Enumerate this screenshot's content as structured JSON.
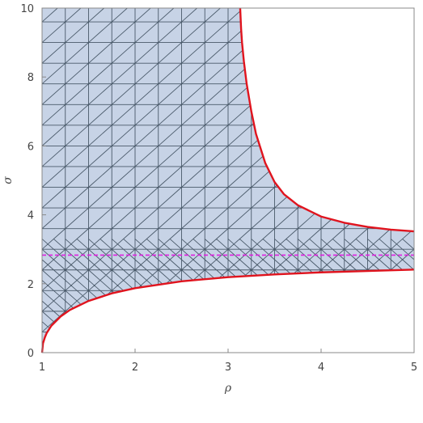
{
  "chart_data": {
    "type": "area",
    "xlabel": "ρ",
    "ylabel": "σ",
    "xlim": [
      1,
      5
    ],
    "ylim": [
      0,
      10
    ],
    "x_ticks": [
      "1",
      "2",
      "3",
      "4",
      "5"
    ],
    "y_ticks": [
      "0",
      "2",
      "4",
      "6",
      "8",
      "10"
    ],
    "grid": false,
    "series": [
      {
        "kind": "lower-boundary",
        "x": [
          1.0,
          1.01,
          1.03,
          1.05,
          1.1,
          1.2,
          1.3,
          1.5,
          1.75,
          2.0,
          2.5,
          3.0,
          3.5,
          4.0,
          4.5,
          5.0
        ],
        "y": [
          0.0,
          0.27,
          0.44,
          0.57,
          0.78,
          1.05,
          1.24,
          1.5,
          1.72,
          1.87,
          2.07,
          2.19,
          2.27,
          2.33,
          2.37,
          2.41
        ]
      },
      {
        "kind": "upper-boundary",
        "x": [
          3.13,
          3.14,
          3.15,
          3.17,
          3.2,
          3.25,
          3.3,
          3.4,
          3.5,
          3.6,
          3.75,
          4.0,
          4.25,
          4.5,
          4.75,
          5.0
        ],
        "y": [
          10.0,
          9.4,
          9.0,
          8.45,
          7.8,
          7.0,
          6.35,
          5.5,
          4.95,
          4.6,
          4.28,
          3.95,
          3.77,
          3.65,
          3.57,
          3.52
        ]
      },
      {
        "kind": "reference-line",
        "x": [
          1,
          5
        ],
        "y": [
          2.83,
          2.83
        ]
      }
    ],
    "colors": {
      "fill": "#c7d3e6",
      "mesh": "#4a5a6a",
      "boundary": "#e0141e",
      "reference": "#e020e0",
      "frame": "#888888"
    }
  }
}
